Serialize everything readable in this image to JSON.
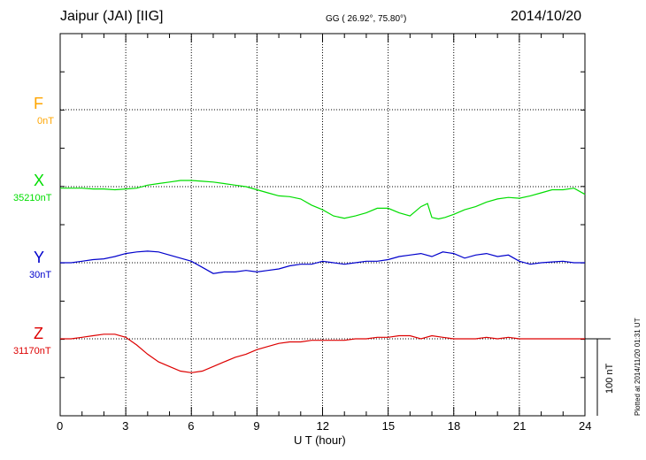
{
  "header": {
    "station": "Jaipur (JAI)  [IIG]",
    "coords": "GG ( 26.92°,  75.80°)",
    "date": "2014/10/20"
  },
  "plotted_note": "Plotted at 2014/11/20 01:31  UT",
  "scale_label": "100 nT",
  "components": [
    {
      "letter": "F",
      "base": "0nT",
      "color": "#ffa500"
    },
    {
      "letter": "X",
      "base": "35210nT",
      "color": "#00dd00"
    },
    {
      "letter": "Y",
      "base": "30nT",
      "color": "#0000cc"
    },
    {
      "letter": "Z",
      "base": "31170nT",
      "color": "#dd0000"
    }
  ],
  "chart_data": {
    "type": "line",
    "xlabel": "U T (hour)",
    "xlim": [
      0,
      24
    ],
    "x_ticks": [
      "0",
      "3",
      "6",
      "9",
      "12",
      "15",
      "18",
      "21",
      "24"
    ],
    "series": [
      {
        "name": "X",
        "color": "#00dd00",
        "x": [
          0,
          0.5,
          1,
          1.5,
          2,
          2.5,
          3,
          3.5,
          4,
          4.5,
          5,
          5.5,
          6,
          6.5,
          7,
          7.5,
          8,
          8.5,
          9,
          9.5,
          10,
          10.5,
          11,
          11.5,
          12,
          12.5,
          13,
          13.5,
          14,
          14.5,
          15,
          15.5,
          16,
          16.5,
          16.8,
          17,
          17.3,
          17.6,
          18,
          18.5,
          19,
          19.5,
          20,
          20.5,
          21,
          21.5,
          22,
          22.5,
          23,
          23.5,
          24
        ],
        "y": [
          35208,
          35208,
          35208,
          35207,
          35207,
          35206,
          35207,
          35208,
          35212,
          35214,
          35216,
          35218,
          35218,
          35217,
          35216,
          35214,
          35212,
          35210,
          35206,
          35202,
          35198,
          35197,
          35194,
          35186,
          35180,
          35172,
          35169,
          35172,
          35176,
          35182,
          35182,
          35176,
          35172,
          35184,
          35188,
          35170,
          35168,
          35170,
          35174,
          35180,
          35184,
          35190,
          35194,
          35196,
          35195,
          35198,
          35202,
          35206,
          35206,
          35208,
          35200
        ]
      },
      {
        "name": "Y",
        "color": "#0000cc",
        "x": [
          0,
          0.5,
          1,
          1.5,
          2,
          2.5,
          3,
          3.5,
          4,
          4.5,
          5,
          5.5,
          6,
          6.5,
          7,
          7.5,
          8,
          8.5,
          9,
          9.5,
          10,
          10.5,
          11,
          11.5,
          12,
          12.5,
          13,
          13.5,
          14,
          14.5,
          15,
          15.5,
          16,
          16.5,
          17,
          17.5,
          18,
          18.5,
          19,
          19.5,
          20,
          20.5,
          21,
          21.5,
          22,
          22.5,
          23,
          23.5,
          24
        ],
        "y": [
          30,
          30,
          32,
          34,
          35,
          38,
          42,
          44,
          45,
          44,
          40,
          36,
          32,
          24,
          16,
          18,
          18,
          20,
          18,
          20,
          22,
          26,
          28,
          28,
          32,
          30,
          28,
          30,
          32,
          32,
          34,
          38,
          40,
          42,
          38,
          44,
          42,
          36,
          40,
          42,
          38,
          40,
          32,
          28,
          30,
          31,
          32,
          30,
          30
        ]
      },
      {
        "name": "Z",
        "color": "#dd0000",
        "x": [
          0,
          0.5,
          1,
          1.5,
          2,
          2.5,
          3,
          3.5,
          4,
          4.5,
          5,
          5.5,
          6,
          6.5,
          7,
          7.5,
          8,
          8.5,
          9,
          9.5,
          10,
          10.5,
          11,
          11.5,
          12,
          12.5,
          13,
          13.5,
          14,
          14.5,
          15,
          15.5,
          16,
          16.5,
          17,
          17.5,
          18,
          18.5,
          19,
          19.5,
          20,
          20.5,
          21,
          21.5,
          22,
          22.5,
          23,
          23.5,
          24
        ],
        "y": [
          31170,
          31170,
          31172,
          31174,
          31176,
          31176,
          31172,
          31162,
          31150,
          31140,
          31134,
          31128,
          31126,
          31128,
          31134,
          31140,
          31146,
          31150,
          31156,
          31160,
          31164,
          31166,
          31166,
          31168,
          31168,
          31168,
          31168,
          31170,
          31170,
          31172,
          31172,
          31174,
          31174,
          31170,
          31174,
          31172,
          31170,
          31170,
          31170,
          31172,
          31170,
          31172,
          31170,
          31170,
          31170,
          31170,
          31170,
          31170,
          31170
        ]
      }
    ]
  }
}
